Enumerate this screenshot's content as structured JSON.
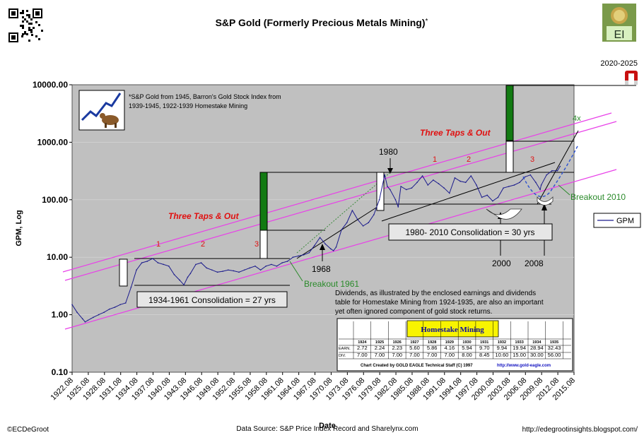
{
  "header": {
    "title": "S&P Gold (Formerly Precious Metals Mining)",
    "title_mark": "*",
    "period": "2020-2025",
    "logo_text": "EI"
  },
  "footer": {
    "copyright": "©ECDeGroot",
    "source": "Data Source: S&P Price Index Record and Sharelynx.com",
    "url": "http://edegrootinsights.blogspot.com/"
  },
  "colors": {
    "plot_bg": "#c0c0c0",
    "series": "#1a1a8c",
    "channel": "#e840e8",
    "annot_red": "#e01010",
    "breakout_green": "#2a8a2a",
    "bar_green": "#127a12"
  },
  "chart_data": {
    "type": "line",
    "ylabel": "GPM, Log",
    "xlabel": "Date",
    "yscale": "log",
    "ylim": [
      0.1,
      10000
    ],
    "xlim": [
      1922.08,
      2015.08
    ],
    "y_ticks": [
      "0.10",
      "1.00",
      "10.00",
      "100.00",
      "1000.00",
      "10000.00"
    ],
    "x_ticks": [
      "1922.08",
      "1925.08",
      "1928.08",
      "1931.08",
      "1934.08",
      "1937.08",
      "1940.08",
      "1943.08",
      "1946.08",
      "1949.08",
      "1952.08",
      "1955.08",
      "1958.08",
      "1961.08",
      "1964.08",
      "1967.08",
      "1970.08",
      "1973.08",
      "1976.08",
      "1979.08",
      "1982.08",
      "1985.08",
      "1988.08",
      "1991.08",
      "1994.08",
      "1997.08",
      "2000.08",
      "2003.08",
      "2006.08",
      "2009.08",
      "2012.08",
      "2015.08"
    ],
    "legend": {
      "position": "right",
      "entries": [
        "GPM"
      ]
    },
    "series": [
      {
        "name": "GPM",
        "x": [
          1922.08,
          1923,
          1924,
          1924.5,
          1925,
          1926,
          1927,
          1928,
          1929,
          1930,
          1931,
          1932,
          1933,
          1934,
          1935,
          1936,
          1937,
          1938,
          1939,
          1940,
          1941,
          1942,
          1942.8,
          1943.5,
          1944,
          1945,
          1946,
          1947,
          1948,
          1949,
          1950,
          1951,
          1952,
          1953,
          1954,
          1955,
          1956,
          1957,
          1958,
          1959,
          1960,
          1961,
          1962,
          1963,
          1964,
          1965,
          1966,
          1967,
          1968,
          1969,
          1970,
          1970.5,
          1971,
          1972,
          1973,
          1974,
          1975,
          1976,
          1977,
          1978,
          1979,
          1980,
          1980.5,
          1981,
          1982,
          1982.5,
          1983,
          1984,
          1985,
          1986,
          1987,
          1988,
          1989,
          1990,
          1991,
          1992,
          1993,
          1994,
          1995,
          1996,
          1997,
          1998,
          1999,
          2000,
          2001,
          2002,
          2003,
          2004,
          2005,
          2006,
          2007,
          2008,
          2008.8,
          2009,
          2010,
          2011,
          2012,
          2012.5
        ],
        "values": [
          1.5,
          1.1,
          0.85,
          0.75,
          0.8,
          0.9,
          1.0,
          1.1,
          1.25,
          1.35,
          1.5,
          1.6,
          3.0,
          6.0,
          8.0,
          8.5,
          9.5,
          8.0,
          7.5,
          7.0,
          5.0,
          4.0,
          3.3,
          4.5,
          5.2,
          7.5,
          8.0,
          6.5,
          6.0,
          5.5,
          5.7,
          6.0,
          5.8,
          5.5,
          6.0,
          6.5,
          7.0,
          6.0,
          7.0,
          7.5,
          7.0,
          8.0,
          8.5,
          10.0,
          10.5,
          11.0,
          12.0,
          16.0,
          22.0,
          17.0,
          14.0,
          13.0,
          15.0,
          30.0,
          40.0,
          65.0,
          45.0,
          35.0,
          40.0,
          55.0,
          100.0,
          270.0,
          170.0,
          150.0,
          100.0,
          75.0,
          170.0,
          150.0,
          160.0,
          200.0,
          260.0,
          180.0,
          220.0,
          190.0,
          160.0,
          130.0,
          240.0,
          210.0,
          200.0,
          260.0,
          180.0,
          110.0,
          120.0,
          95.0,
          110.0,
          160.0,
          170.0,
          180.0,
          200.0,
          250.0,
          270.0,
          200.0,
          150.0,
          180.0,
          270.0,
          320.0,
          320.0,
          380.0
        ]
      }
    ],
    "annotations": {
      "note": "*S&P Gold from 1945, Barron's Gold Stock Index from 1939-1945, 1922-1939 Homestake Mining",
      "three_taps_1": "Three Taps & Out",
      "three_taps_2": "Three Taps & Out",
      "taps_1": [
        "1",
        "2",
        "3"
      ],
      "taps_2": [
        "1",
        "2",
        "3"
      ],
      "consolidation_1": "1934-1961 Consolidation = 27 yrs",
      "consolidation_2": "1980- 2010 Consolidation = 30 yrs",
      "breakout_1961": "Breakout 1961",
      "breakout_2010": "Breakout 2010",
      "label_1968": "1968",
      "label_1980": "1980",
      "label_2000": "2000",
      "label_2008": "2008",
      "label_4x": "4x",
      "dividends": "Dividends, as illustrated by the enclosed earnings and dividends table for Homestake Mining from 1924-1935, are also an important yet often ignored component of gold stock returns."
    },
    "table": {
      "title": "Homestake Mining",
      "years": [
        "1924",
        "1925",
        "1926",
        "1927",
        "1928",
        "1929",
        "1930",
        "1931",
        "1932",
        "1933",
        "1934",
        "1935"
      ],
      "earn_label": "EARN.",
      "earn": [
        "2.72",
        "2.24",
        "2.23",
        "5.60",
        "5.86",
        "4.16",
        "5.94",
        "9.70",
        "9.94",
        "19.94",
        "28.94",
        "32.43"
      ],
      "div_label": "DIV.",
      "div": [
        "7.00",
        "7.00",
        "7.00",
        "7.00",
        "7.00",
        "7.00",
        "8.00",
        "8.45",
        "10.60",
        "15.00",
        "30.00",
        "56.00"
      ],
      "credit": "Chart Created by GOLD EAGLE Technical Staff (C) 1997",
      "credit_url": "http://www.gold-eagle.com"
    }
  }
}
